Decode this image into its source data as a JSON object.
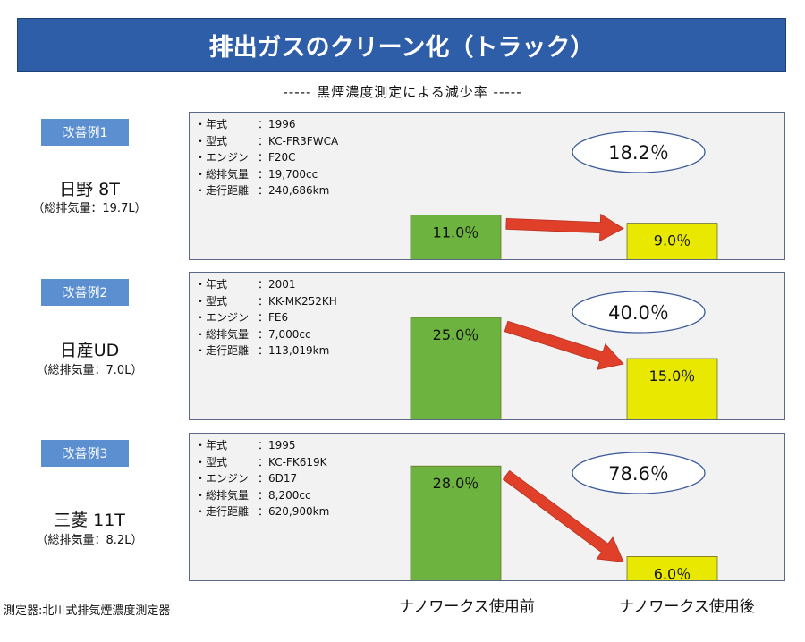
{
  "title": "排出ガスのクリーン化（トラック）",
  "subtitle": "----- 黒煙濃度測定による減少率 -----",
  "categories": [
    "ナノワークス使用前",
    "ナノワークス使用後"
  ],
  "footer": "測定器:北川式排気煙濃度測定器",
  "colors": {
    "title_bg": "#2f5ea8",
    "badge_bg": "#5b8fd0",
    "before_bar": "#6db33f",
    "after_bar": "#e8e800",
    "arrow": "#e0402a"
  },
  "cases": [
    {
      "badge": "改善例1",
      "name": "日野 8T",
      "displacement": "（総排気量：19.7L）",
      "specs": [
        {
          "label": "・年式",
          "value": "：1996"
        },
        {
          "label": "・型式",
          "value": "：KC-FR3FWCA"
        },
        {
          "label": "・エンジン",
          "value": "：F20C"
        },
        {
          "label": "・総排気量",
          "value": "：19,700cc"
        },
        {
          "label": "・走行距離",
          "value": "：240,686km"
        }
      ],
      "reduction_label": "18.2％"
    },
    {
      "badge": "改善例2",
      "name": "日産UD",
      "displacement": "（総排気量：7.0L）",
      "specs": [
        {
          "label": "・年式",
          "value": "：2001"
        },
        {
          "label": "・型式",
          "value": "：KK-MK252KH"
        },
        {
          "label": "・エンジン",
          "value": "：FE6"
        },
        {
          "label": "・総排気量",
          "value": "：7,000cc"
        },
        {
          "label": "・走行距離",
          "value": "：113,019km"
        }
      ],
      "reduction_label": "40.0％"
    },
    {
      "badge": "改善例3",
      "name": "三菱 11T",
      "displacement": "（総排気量：8.2L）",
      "specs": [
        {
          "label": "・年式",
          "value": "：1995"
        },
        {
          "label": "・型式",
          "value": "：KC-FK619K"
        },
        {
          "label": "・エンジン",
          "value": "：6D17"
        },
        {
          "label": "・総排気量",
          "value": "：8,200cc"
        },
        {
          "label": "・走行距離",
          "value": "：620,900km"
        }
      ],
      "reduction_label": "78.6％"
    }
  ],
  "chart_data": [
    {
      "type": "bar",
      "categories": [
        "ナノワークス使用前",
        "ナノワークス使用後"
      ],
      "values": [
        11.0,
        9.0
      ],
      "data_labels": [
        "11.0％",
        "9.0％"
      ],
      "annotation": "18.2％"
    },
    {
      "type": "bar",
      "categories": [
        "ナノワークス使用前",
        "ナノワークス使用後"
      ],
      "values": [
        25.0,
        15.0
      ],
      "data_labels": [
        "25.0％",
        "15.0％"
      ],
      "annotation": "40.0％"
    },
    {
      "type": "bar",
      "categories": [
        "ナノワークス使用前",
        "ナノワークス使用後"
      ],
      "values": [
        28.0,
        6.0
      ],
      "data_labels": [
        "28.0％",
        "6.0％"
      ],
      "annotation": "78.6％"
    }
  ]
}
